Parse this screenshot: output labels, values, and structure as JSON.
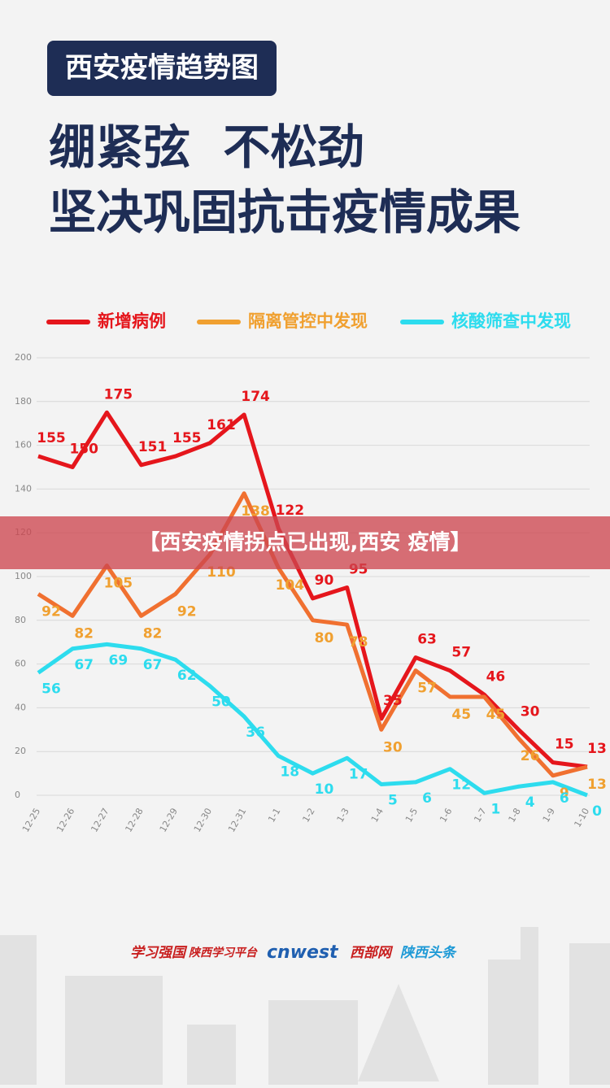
{
  "header": {
    "tag": "西安疫情趋势图",
    "headline": [
      "绷紧弦  不松劲",
      "坚决巩固抗击疫情成果"
    ]
  },
  "chart_data": {
    "type": "line",
    "categories": [
      "12-25",
      "12-26",
      "12-27",
      "12-28",
      "12-29",
      "12-30",
      "12-31",
      "1-1",
      "1-2",
      "1-3",
      "1-4",
      "1-5",
      "1-6",
      "1-7",
      "1-8",
      "1-9",
      "1-10"
    ],
    "series": [
      {
        "name": "新增病例",
        "color": "#e5161c",
        "values": [
          155,
          150,
          175,
          151,
          155,
          161,
          174,
          122,
          90,
          95,
          35,
          63,
          57,
          46,
          30,
          15,
          13
        ]
      },
      {
        "name": "隔离管控中发现",
        "color": "#f0a030",
        "values": [
          92,
          82,
          105,
          82,
          92,
          110,
          138,
          104,
          80,
          78,
          30,
          57,
          45,
          45,
          26,
          9,
          13
        ]
      },
      {
        "name": "核酸筛查中发现",
        "color": "#2ddcee",
        "values": [
          56,
          67,
          69,
          67,
          62,
          50,
          36,
          18,
          10,
          17,
          5,
          6,
          12,
          1,
          4,
          6,
          0
        ]
      }
    ],
    "ylim": [
      0,
      200
    ],
    "yticks": [
      0,
      20,
      40,
      60,
      80,
      100,
      120,
      140,
      160,
      180,
      200
    ],
    "grid": true
  },
  "banner": "【西安疫情拐点已出现,西安 疫情】",
  "footer": {
    "logos": [
      "学习强国",
      "陕西学习平台",
      "cnwest",
      "西部网",
      "陕西头条"
    ]
  }
}
